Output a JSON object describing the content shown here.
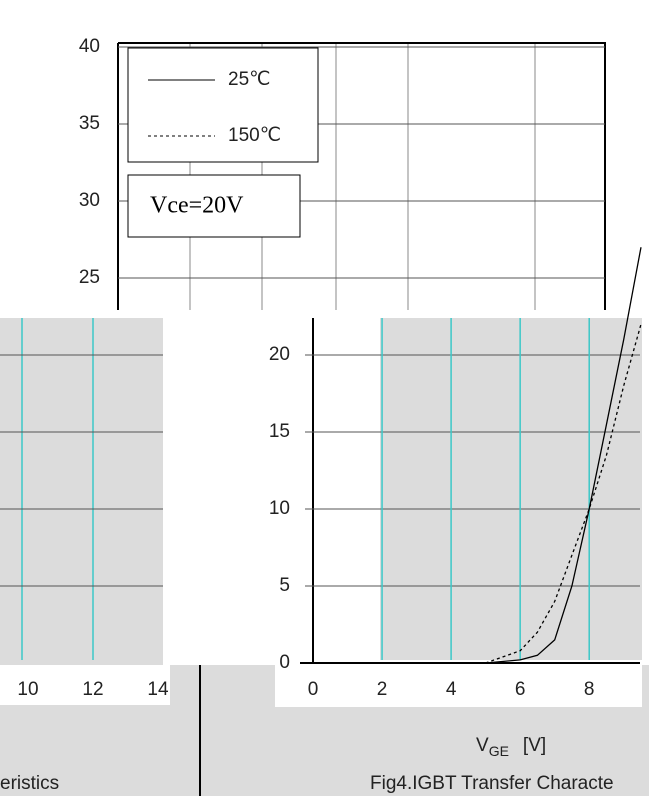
{
  "chart_data": {
    "type": "line",
    "xlabel": {
      "symbol": "V",
      "sub": "GE",
      "unit": "[V]"
    },
    "annotation": "Vce=20V",
    "x": [
      5,
      6,
      6.5,
      7,
      7.5,
      8,
      8.5,
      9,
      9.5
    ],
    "series": [
      {
        "name": "25℃",
        "color": "#000000",
        "dash": "none",
        "values": [
          0,
          0.2,
          0.5,
          1.5,
          5,
          10,
          15.5,
          21,
          27
        ]
      },
      {
        "name": "150℃",
        "color": "#000000",
        "dash": "3,3",
        "values": [
          0,
          0.8,
          2,
          4,
          7,
          10,
          13.5,
          18,
          22
        ]
      }
    ],
    "xlim": [
      0,
      9.5
    ],
    "ylim": [
      0,
      40
    ],
    "xticks": [
      0,
      2,
      4,
      6,
      8
    ],
    "yticks": [
      0,
      5,
      10,
      15,
      20,
      25,
      30,
      35,
      40
    ],
    "grid": true
  },
  "fragments": {
    "left_xticks": [
      10,
      12,
      14
    ],
    "captions": [
      "eristics",
      "Fig4.IGBT Transfer Characte"
    ]
  }
}
